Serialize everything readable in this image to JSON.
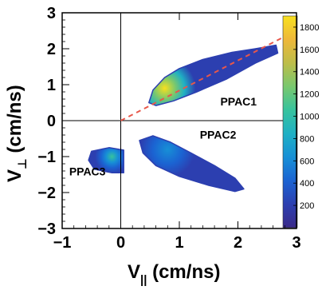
{
  "chart_data": {
    "type": "heatmap",
    "title": "",
    "xlabel": {
      "main": "V",
      "sub": "||",
      "unit": " (cm/ns)"
    },
    "ylabel": {
      "main": "V",
      "sub": "⊥",
      "unit": " (cm/ns)"
    },
    "xlim": [
      -1,
      3
    ],
    "ylim": [
      -3,
      3
    ],
    "x_ticks": [
      "−1",
      "0",
      "1",
      "2",
      "3"
    ],
    "y_ticks": [
      "3",
      "2",
      "1",
      "0",
      "−1",
      "−2",
      "−3"
    ],
    "x_tick_values": [
      -1,
      0,
      1,
      2,
      3
    ],
    "y_tick_values": [
      3,
      2,
      1,
      0,
      -1,
      -2,
      -3
    ],
    "colorbar": {
      "min": 0,
      "max": 1900,
      "ticks": [
        200,
        400,
        600,
        800,
        1000,
        1200,
        1400,
        1600,
        1800
      ],
      "tick_labels": [
        "200",
        "400",
        "600",
        "800",
        "1000",
        "1200",
        "1400",
        "1600",
        "1800"
      ],
      "colormap": [
        "#3a2a8a",
        "#2c3fb0",
        "#1b63d2",
        "#1790d6",
        "#1fb0c4",
        "#37c39d",
        "#79c86e",
        "#bdbd49",
        "#eeb83a",
        "#f8e01e"
      ]
    },
    "reference_lines": {
      "vertical_at_x": 0,
      "horizontal_at_y": 0,
      "diagonal": {
        "from": [
          0,
          0
        ],
        "to": [
          2.75,
          2.3
        ],
        "style": "dashed",
        "color": "#e8574a"
      }
    },
    "regions": [
      {
        "label": "PPAC1",
        "label_pos": [
          1.7,
          0.42
        ],
        "outline": [
          [
            0.48,
            0.5
          ],
          [
            0.55,
            0.85
          ],
          [
            0.75,
            1.2
          ],
          [
            1.0,
            1.45
          ],
          [
            1.4,
            1.7
          ],
          [
            1.9,
            1.9
          ],
          [
            2.3,
            2.0
          ],
          [
            2.65,
            2.1
          ],
          [
            2.68,
            1.88
          ],
          [
            2.3,
            1.6
          ],
          [
            1.8,
            1.15
          ],
          [
            1.3,
            0.8
          ],
          [
            0.9,
            0.55
          ],
          [
            0.6,
            0.42
          ]
        ],
        "core": {
          "center": [
            0.75,
            0.9
          ],
          "radius": [
            0.22,
            0.14
          ],
          "peak": 1850
        }
      },
      {
        "label": "PPAC2",
        "label_pos": [
          1.35,
          -0.5
        ],
        "outline": [
          [
            0.32,
            -0.55
          ],
          [
            0.38,
            -0.9
          ],
          [
            0.6,
            -1.25
          ],
          [
            1.0,
            -1.55
          ],
          [
            1.5,
            -1.8
          ],
          [
            1.95,
            -1.97
          ],
          [
            2.1,
            -1.9
          ],
          [
            1.95,
            -1.6
          ],
          [
            1.6,
            -1.25
          ],
          [
            1.2,
            -0.9
          ],
          [
            0.85,
            -0.6
          ],
          [
            0.55,
            -0.42
          ]
        ],
        "core": {
          "center": [
            0.8,
            -0.8
          ],
          "radius": [
            0.3,
            0.18
          ],
          "peak": 700
        }
      },
      {
        "label": "PPAC3",
        "label_pos": [
          -0.88,
          -1.52
        ],
        "outline": [
          [
            -0.5,
            -0.85
          ],
          [
            -0.2,
            -0.75
          ],
          [
            0.05,
            -0.82
          ],
          [
            0.05,
            -1.45
          ],
          [
            -0.15,
            -1.45
          ],
          [
            -0.45,
            -1.35
          ],
          [
            -0.55,
            -1.1
          ]
        ],
        "core": {
          "center": [
            -0.15,
            -1.0
          ],
          "radius": [
            0.12,
            0.12
          ],
          "peak": 1000
        }
      }
    ]
  }
}
